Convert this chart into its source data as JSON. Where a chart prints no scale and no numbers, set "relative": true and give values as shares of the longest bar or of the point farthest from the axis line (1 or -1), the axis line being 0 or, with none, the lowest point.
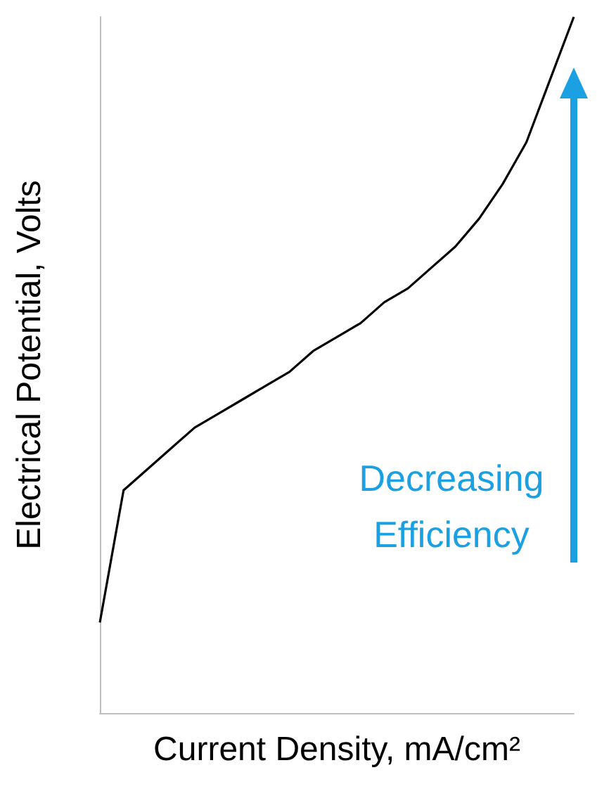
{
  "chart_data": {
    "type": "line",
    "relative": true,
    "xlabel": "Current Density, mA/cm²",
    "ylabel": "Electrical Potential, Volts",
    "categories": [
      null,
      null,
      null,
      null,
      null,
      null,
      null,
      null,
      null,
      null,
      null,
      null,
      null,
      null,
      null,
      null,
      null,
      null,
      null,
      null,
      null
    ],
    "series": [
      {
        "color": "#000000",
        "values": [
          0.13,
          0.32,
          0.35,
          0.38,
          0.41,
          0.43,
          0.45,
          0.47,
          0.49,
          0.52,
          0.54,
          0.56,
          0.59,
          0.61,
          0.64,
          0.67,
          0.71,
          0.76,
          0.82,
          0.91,
          1
        ]
      }
    ],
    "annotations": [
      {
        "text": "Decreasing Efficiency"
      }
    ],
    "line_style": "solid"
  }
}
